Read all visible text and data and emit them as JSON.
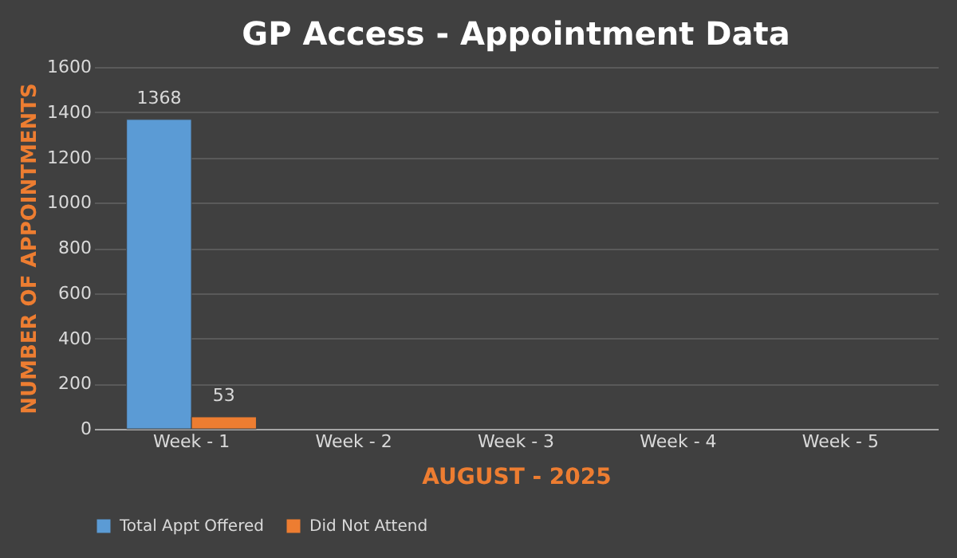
{
  "chart_data": {
    "type": "bar",
    "title": "GP Access - Appointment Data",
    "xlabel": "AUGUST - 2025",
    "ylabel": "NUMBER OF APPOINTMENTS",
    "categories": [
      "Week - 1",
      "Week - 2",
      "Week - 3",
      "Week - 4",
      "Week - 5"
    ],
    "series": [
      {
        "name": "Total Appt Offered",
        "color": "#5b9bd5",
        "values": [
          1368,
          null,
          null,
          null,
          null
        ]
      },
      {
        "name": "Did Not Attend",
        "color": "#ed7d31",
        "values": [
          53,
          null,
          null,
          null,
          null
        ]
      }
    ],
    "ylim": [
      0,
      1600
    ],
    "yticks": [
      0,
      200,
      400,
      600,
      800,
      1000,
      1200,
      1400,
      1600
    ],
    "grid": "y",
    "legend": "bottom",
    "data_labels": true
  }
}
